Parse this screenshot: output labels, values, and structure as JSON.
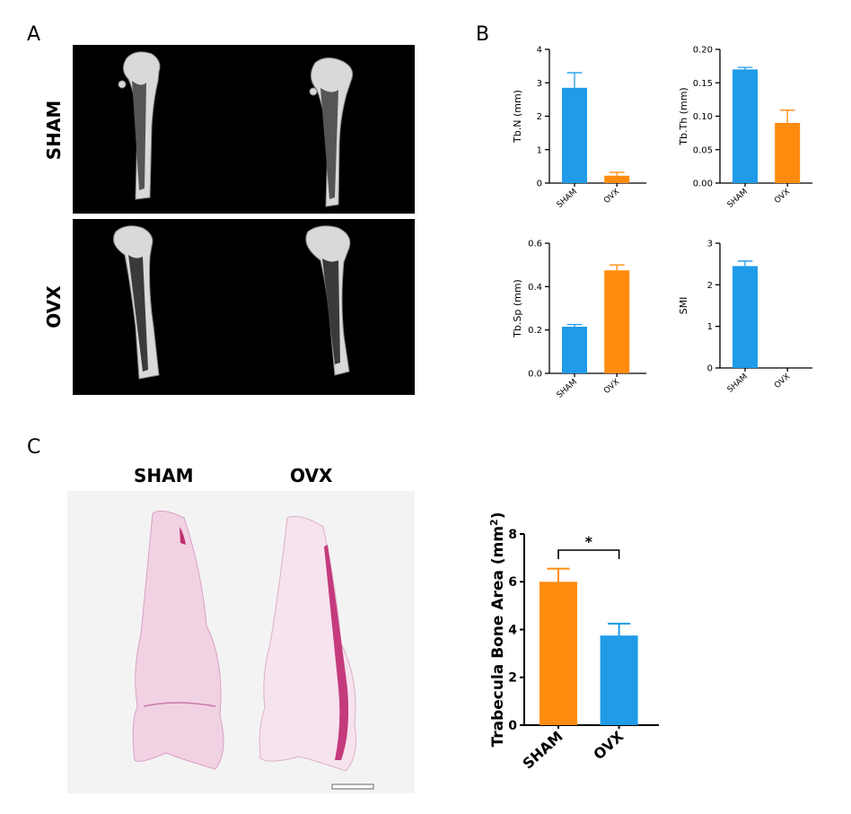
{
  "panels": {
    "a": "A",
    "b": "B",
    "c": "C"
  },
  "panel_a": {
    "rows": [
      "SHAM",
      "OVX"
    ]
  },
  "panel_c": {
    "columns": [
      "SHAM",
      "OVX"
    ]
  },
  "colors": {
    "sham": "#1f9be8",
    "ovx": "#ff8c0f",
    "axis": "#000000"
  },
  "chart_data": [
    {
      "id": "tbn",
      "type": "bar",
      "ylabel": "Tb.N (mm)",
      "categories": [
        "SHAM",
        "OVX"
      ],
      "values": [
        2.85,
        0.22
      ],
      "errors": [
        0.45,
        0.1
      ],
      "bar_colors": [
        "sham",
        "ovx"
      ],
      "ylim": [
        0,
        4
      ],
      "ticks": [
        0,
        1,
        2,
        3,
        4
      ],
      "tick_labels": [
        "0",
        "1",
        "2",
        "3",
        "4"
      ]
    },
    {
      "id": "tbth",
      "type": "bar",
      "ylabel": "Tb.Th (mm)",
      "categories": [
        "SHAM",
        "OVX"
      ],
      "values": [
        0.17,
        0.09
      ],
      "errors": [
        0.003,
        0.019
      ],
      "bar_colors": [
        "sham",
        "ovx"
      ],
      "ylim": [
        0,
        0.2
      ],
      "ticks": [
        0,
        0.05,
        0.1,
        0.15,
        0.2
      ],
      "tick_labels": [
        "0.00",
        "0.05",
        "0.10",
        "0.15",
        "0.20"
      ]
    },
    {
      "id": "tbsp",
      "type": "bar",
      "ylabel": "Tb.Sp (mm)",
      "categories": [
        "SHAM",
        "OVX"
      ],
      "values": [
        0.215,
        0.475
      ],
      "errors": [
        0.01,
        0.025
      ],
      "bar_colors": [
        "sham",
        "ovx"
      ],
      "ylim": [
        0,
        0.6
      ],
      "ticks": [
        0,
        0.2,
        0.4,
        0.6
      ],
      "tick_labels": [
        "0.0",
        "0.2",
        "0.4",
        "0.6"
      ]
    },
    {
      "id": "smi",
      "type": "bar",
      "ylabel": "SMI",
      "categories": [
        "SHAM",
        "OVX"
      ],
      "values": [
        2.45,
        0
      ],
      "errors": [
        0.12,
        0
      ],
      "bar_colors": [
        "sham",
        "ovx"
      ],
      "ylim": [
        0,
        3
      ],
      "ticks": [
        0,
        1,
        2,
        3
      ],
      "tick_labels": [
        "0",
        "1",
        "2",
        "3"
      ]
    },
    {
      "id": "tba",
      "type": "bar",
      "ylabel": "Trabecula Bone Area (mm",
      "ylabel_sup": "2",
      "ylabel_end": ")",
      "categories": [
        "SHAM",
        "OVX"
      ],
      "values": [
        6.0,
        3.75
      ],
      "errors": [
        0.55,
        0.5
      ],
      "bar_colors": [
        "ovx",
        "sham"
      ],
      "ylim": [
        0,
        8
      ],
      "ticks": [
        0,
        2,
        4,
        6,
        8
      ],
      "tick_labels": [
        "0",
        "2",
        "4",
        "6",
        "8"
      ],
      "significance": "*"
    }
  ]
}
